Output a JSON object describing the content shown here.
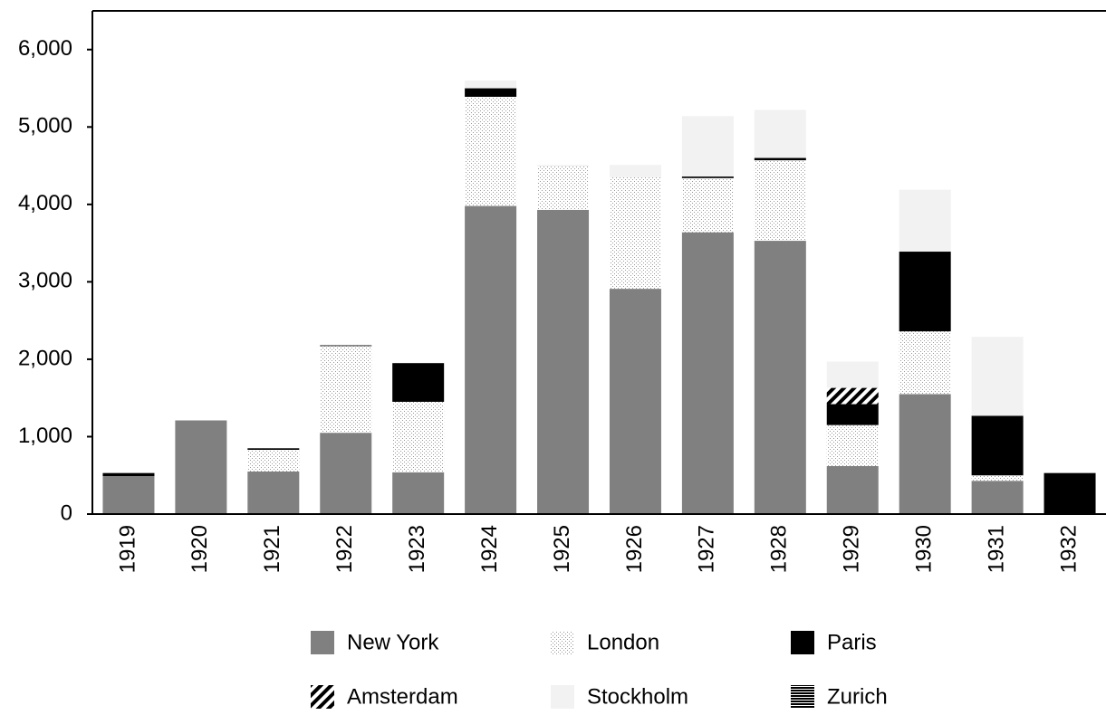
{
  "chart_data": {
    "type": "stacked_bar",
    "categories": [
      "1919",
      "1920",
      "1921",
      "1922",
      "1923",
      "1924",
      "1925",
      "1926",
      "1927",
      "1928",
      "1929",
      "1930",
      "1931",
      "1932"
    ],
    "series": [
      {
        "name": "New York",
        "color": "#808080",
        "pattern": "solid",
        "values": [
          490,
          1210,
          550,
          1050,
          540,
          3980,
          3930,
          2910,
          3640,
          3530,
          620,
          1550,
          430,
          0
        ]
      },
      {
        "name": "London",
        "color": "#ffffff",
        "pattern": "dots",
        "values": [
          0,
          0,
          280,
          1120,
          910,
          1410,
          560,
          1440,
          700,
          1040,
          530,
          810,
          70,
          0
        ]
      },
      {
        "name": "Paris",
        "color": "#000000",
        "pattern": "solid",
        "values": [
          40,
          0,
          20,
          10,
          500,
          110,
          0,
          0,
          20,
          30,
          270,
          1030,
          770,
          530
        ]
      },
      {
        "name": "Amsterdam",
        "color": "#000000",
        "pattern": "diagonal",
        "values": [
          0,
          0,
          0,
          0,
          0,
          0,
          0,
          0,
          0,
          0,
          210,
          0,
          0,
          0
        ]
      },
      {
        "name": "Stockholm",
        "color": "#f2f2f2",
        "pattern": "solid",
        "values": [
          0,
          0,
          0,
          0,
          0,
          100,
          20,
          160,
          780,
          620,
          340,
          800,
          1020,
          0
        ]
      },
      {
        "name": "Zurich",
        "color": "#000000",
        "pattern": "horizontal",
        "values": [
          0,
          0,
          0,
          0,
          0,
          0,
          0,
          0,
          0,
          0,
          0,
          0,
          0,
          0
        ]
      }
    ],
    "ylim": [
      0,
      6500
    ],
    "yticks": [
      0,
      {
        "value": 1000,
        "label": "1,000"
      },
      {
        "value": 2000,
        "label": "2,000"
      },
      {
        "value": 3000,
        "label": "3,000"
      },
      {
        "value": 4000,
        "label": "4,000"
      },
      {
        "value": 5000,
        "label": "5,000"
      },
      {
        "value": 6000,
        "label": "6,000"
      }
    ],
    "grid": false
  }
}
